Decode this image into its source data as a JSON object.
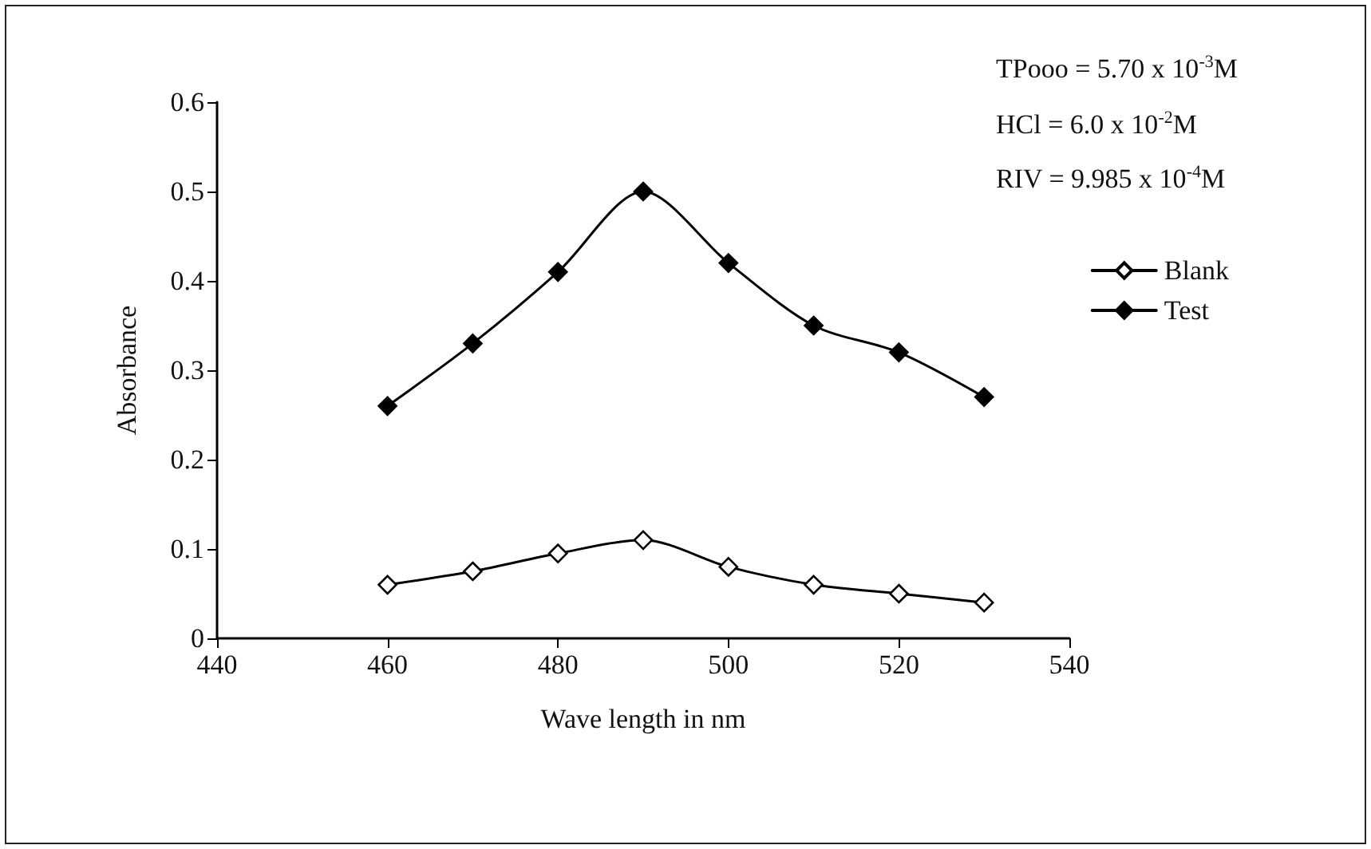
{
  "chart_data": {
    "type": "line",
    "xlabel": "Wave length in nm",
    "ylabel": "Absorbance",
    "x": [
      460,
      470,
      480,
      490,
      500,
      510,
      520,
      530
    ],
    "series": [
      {
        "name": "Blank",
        "color": "#000000",
        "values": [
          0.06,
          0.075,
          0.095,
          0.11,
          0.08,
          0.06,
          0.05,
          0.04
        ]
      },
      {
        "name": "Test",
        "color": "#000000",
        "values": [
          0.26,
          0.33,
          0.41,
          0.5,
          0.42,
          0.35,
          0.32,
          0.27
        ]
      }
    ],
    "annotations": [
      "TPooo = 5.70 x 10$^{-3}$M",
      "HCl = 6.0 x 10$^{-2}$M",
      "RIV = 9.985 x 10$^{-4}$M"
    ],
    "xlim": [
      440,
      540
    ],
    "xticks": [
      440,
      460,
      480,
      500,
      520,
      540
    ],
    "ylim": [
      0,
      0.6
    ],
    "yticks": [
      0,
      0.1,
      0.2,
      0.3,
      0.4,
      0.5,
      0.6
    ],
    "grid": false,
    "legend": "top right",
    "marker": "diamond",
    "line_style": "solid"
  }
}
